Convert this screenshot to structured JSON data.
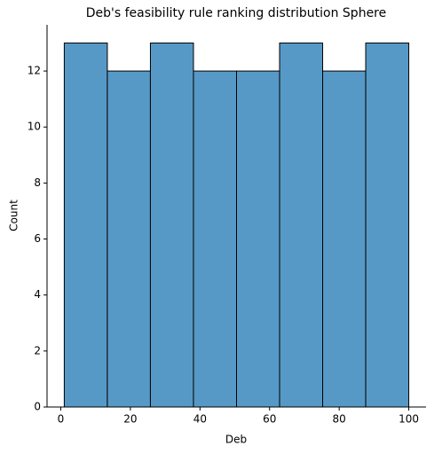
{
  "chart_data": {
    "type": "histogram",
    "title": "Deb's feasibility rule ranking distribution Sphere",
    "x_label": "Deb",
    "y_label": "Count",
    "bins": [
      1,
      13.375,
      25.75,
      38.125,
      50.5,
      62.875,
      75.25,
      87.625,
      100
    ],
    "values": [
      13,
      12,
      13,
      12,
      12,
      13,
      12,
      13
    ],
    "color": "#5799c6",
    "xlim": [
      -3.95,
      104.95
    ],
    "xticks": [
      0,
      20,
      40,
      60,
      80,
      100
    ],
    "ylim": [
      0,
      13.65
    ],
    "yticks": [
      0,
      2,
      4,
      6,
      8,
      10,
      12
    ]
  }
}
